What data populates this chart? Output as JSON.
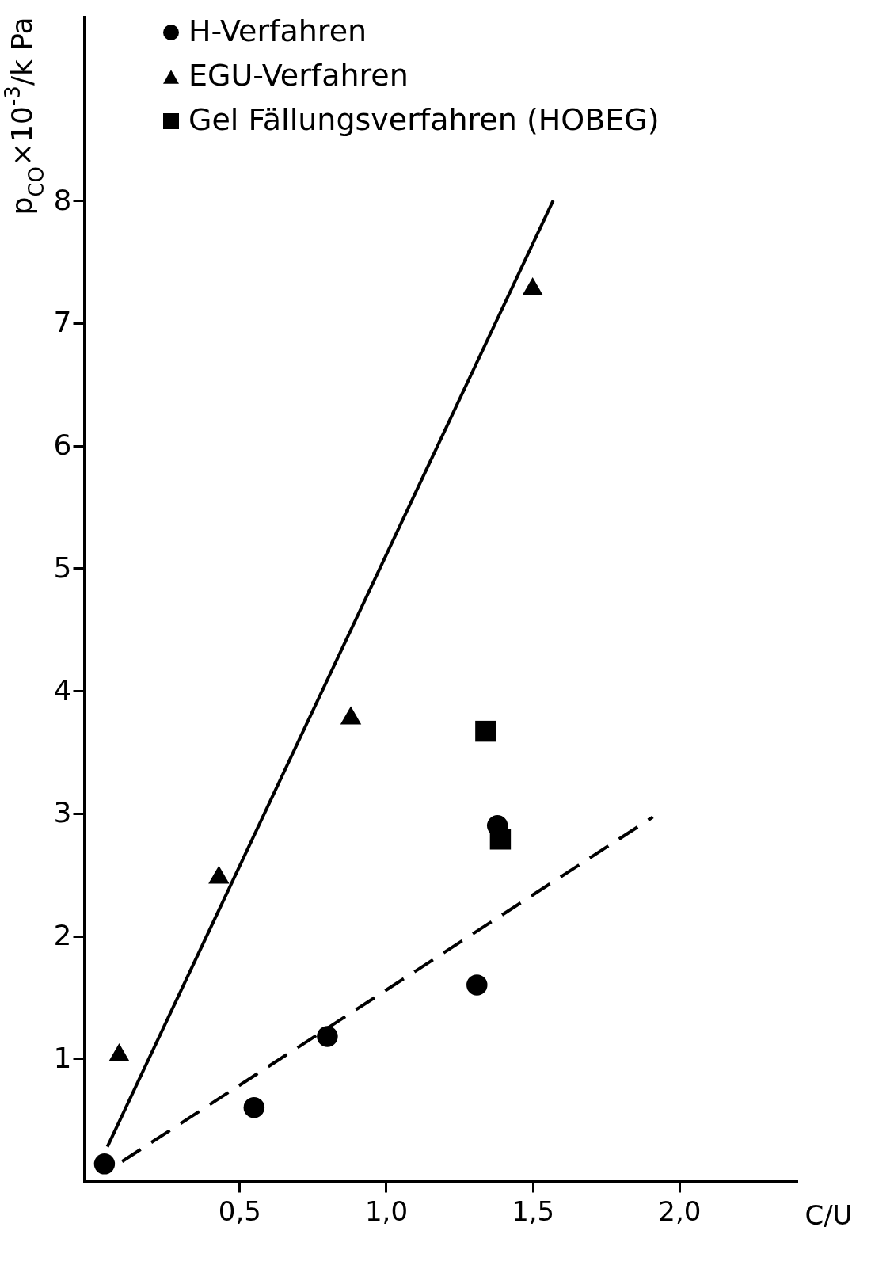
{
  "chart_data": {
    "type": "scatter",
    "xlabel": "C/U",
    "ylabel": "p$_{CO}$×10$^{-3}$/k Pa",
    "xlim": [
      -0.03,
      2.4
    ],
    "ylim": [
      0,
      9.5
    ],
    "xticks": [
      {
        "value": 0.5,
        "label": "0,5"
      },
      {
        "value": 1,
        "label": "1,0"
      },
      {
        "value": 1.5,
        "label": "1,5"
      },
      {
        "value": 2,
        "label": "2,0"
      }
    ],
    "yticks": [
      1,
      2,
      3,
      4,
      5,
      6,
      7,
      8
    ],
    "grid": false,
    "legend": "top left",
    "series": [
      {
        "name": "H-Verfahren",
        "type": "scatter",
        "marker": "circle",
        "color": "#000000",
        "x": [
          0.04,
          0.55,
          0.8,
          1.31,
          1.38
        ],
        "values": [
          0.14,
          0.6,
          1.18,
          1.6,
          2.9
        ]
      },
      {
        "name": "EGU-Verfahren",
        "type": "scatter",
        "marker": "triangle",
        "color": "#000000",
        "x": [
          0.09,
          0.43,
          0.88,
          1.5
        ],
        "values": [
          1.05,
          2.5,
          3.8,
          7.3
        ]
      },
      {
        "name": "Gel  Fällungsverfahren (HOBEG)",
        "type": "scatter",
        "marker": "square",
        "color": "#000000",
        "x": [
          1.34,
          1.39
        ],
        "values": [
          3.67,
          2.79
        ]
      },
      {
        "type": "line",
        "line_style": "solid",
        "marker": "none",
        "color": "#000000",
        "x": [
          0.05,
          1.57
        ],
        "values": [
          0.28,
          8.0
        ]
      },
      {
        "type": "line",
        "line_style": "dashed",
        "marker": "none",
        "color": "#000000",
        "x": [
          0.1,
          1.91
        ],
        "values": [
          0.16,
          2.97
        ]
      }
    ]
  }
}
